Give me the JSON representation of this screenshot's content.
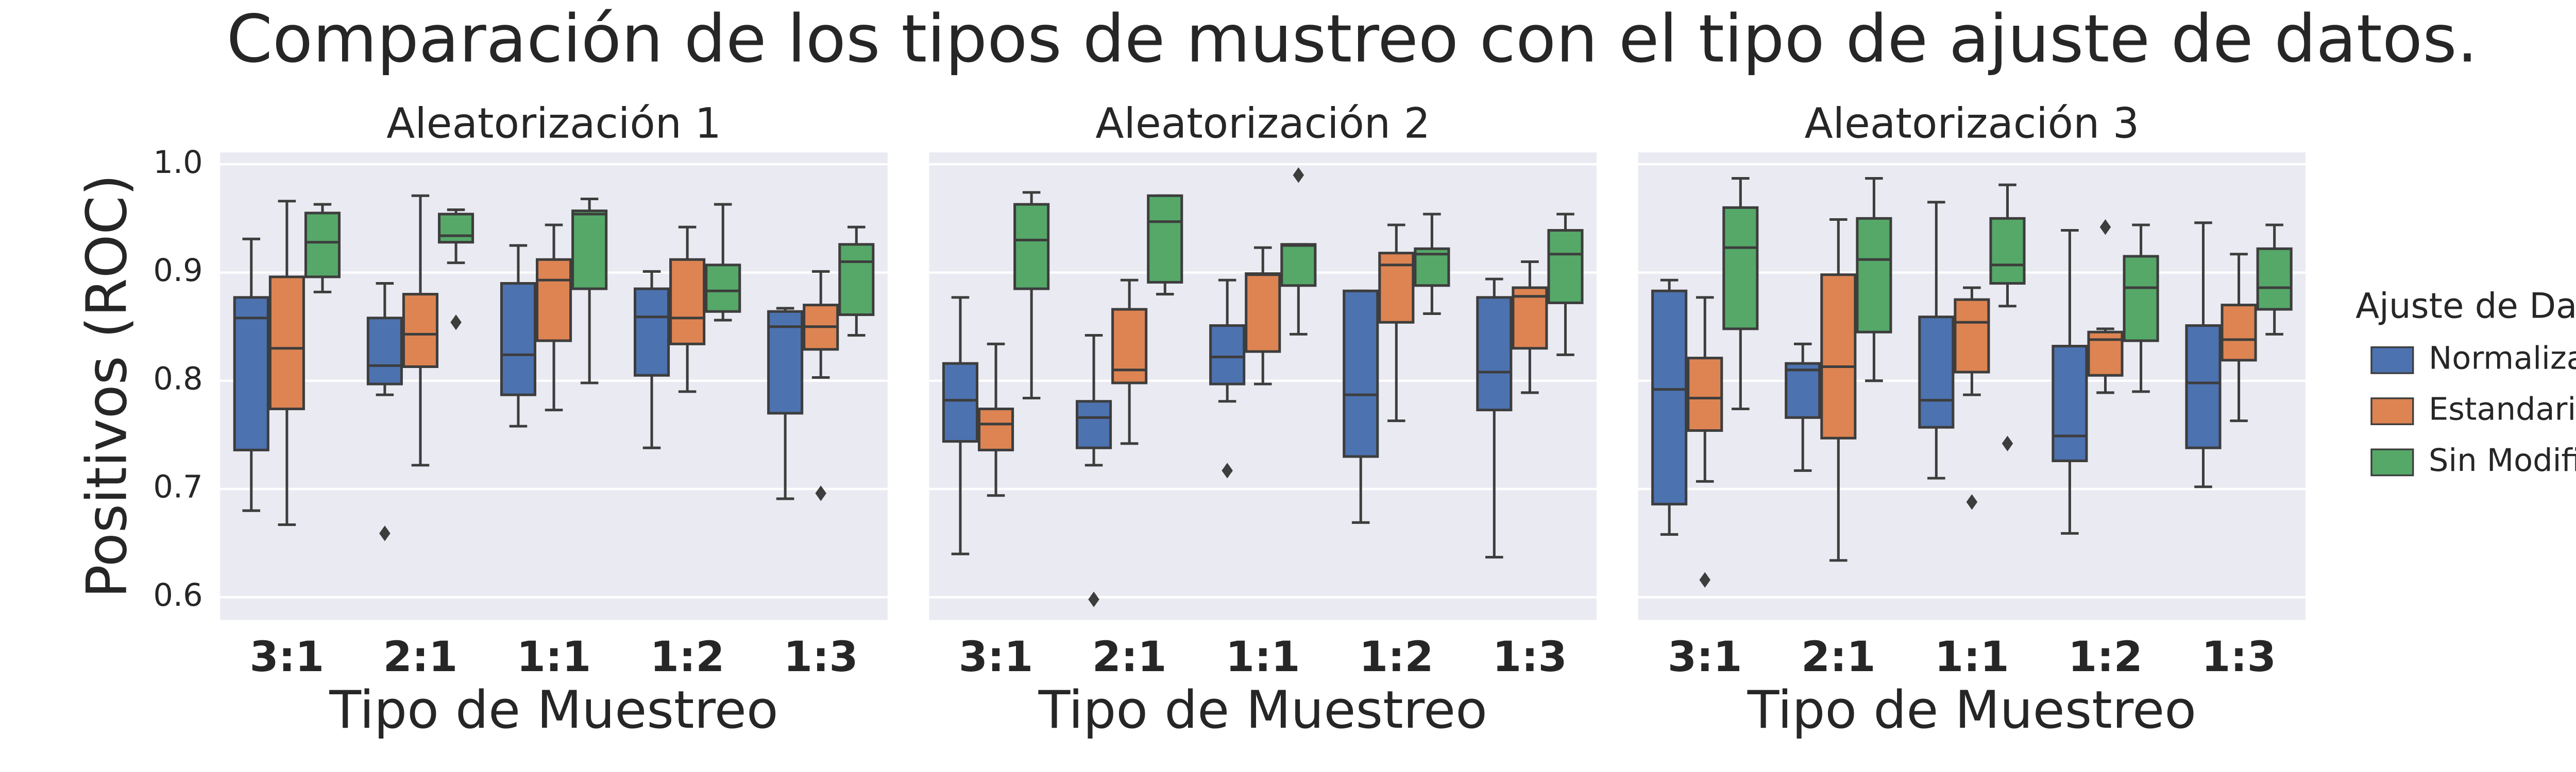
{
  "title": "Comparación de los tipos de mustreo con el tipo de ajuste de datos.",
  "legend_title": "Ajuste de Datos",
  "chart_data": [
    {
      "type": "box",
      "title": "Aleatorización 1",
      "xlabel": "Tipo de Muestreo",
      "ylabel": "Positivos (ROC)",
      "categories": [
        "3:1",
        "2:1",
        "1:1",
        "1:2",
        "1:3"
      ],
      "ylim": [
        0.579,
        1.011
      ],
      "yticks": [
        0.6,
        0.7,
        0.8,
        0.9,
        {
          "value": 1,
          "label": "1.0"
        }
      ],
      "grid": true,
      "series": [
        {
          "name": "Normalizados",
          "color": "#4c72b0",
          "boxes": [
            {
              "low": 0.68,
              "q1": 0.736,
              "median": 0.858,
              "q3": 0.877,
              "high": 0.931
            },
            {
              "low": 0.787,
              "q1": 0.797,
              "median": 0.814,
              "q3": 0.858,
              "high": 0.89,
              "outliers": [
                0.659
              ]
            },
            {
              "low": 0.758,
              "q1": 0.787,
              "median": 0.824,
              "q3": 0.89,
              "high": 0.925
            },
            {
              "low": 0.738,
              "q1": 0.805,
              "median": 0.859,
              "q3": 0.885,
              "high": 0.901
            },
            {
              "low": 0.691,
              "q1": 0.77,
              "median": 0.85,
              "q3": 0.864,
              "high": 0.867
            }
          ]
        },
        {
          "name": "Estandarizados",
          "color": "#dd8452",
          "boxes": [
            {
              "low": 0.667,
              "q1": 0.774,
              "median": 0.83,
              "q3": 0.896,
              "high": 0.966
            },
            {
              "low": 0.722,
              "q1": 0.813,
              "median": 0.843,
              "q3": 0.88,
              "high": 0.971
            },
            {
              "low": 0.773,
              "q1": 0.837,
              "median": 0.893,
              "q3": 0.912,
              "high": 0.944
            },
            {
              "low": 0.79,
              "q1": 0.834,
              "median": 0.858,
              "q3": 0.912,
              "high": 0.942
            },
            {
              "low": 0.803,
              "q1": 0.829,
              "median": 0.85,
              "q3": 0.87,
              "high": 0.901,
              "outliers": [
                0.696
              ]
            }
          ]
        },
        {
          "name": "Sin Modificación",
          "color": "#55a868",
          "boxes": [
            {
              "low": 0.882,
              "q1": 0.896,
              "median": 0.928,
              "q3": 0.955,
              "high": 0.963
            },
            {
              "low": 0.909,
              "q1": 0.928,
              "median": 0.934,
              "q3": 0.954,
              "high": 0.958,
              "outliers": [
                0.854
              ]
            },
            {
              "low": 0.798,
              "q1": 0.885,
              "median": 0.954,
              "q3": 0.957,
              "high": 0.968
            },
            {
              "low": 0.856,
              "q1": 0.864,
              "median": 0.883,
              "q3": 0.907,
              "high": 0.963
            },
            {
              "low": 0.842,
              "q1": 0.861,
              "median": 0.91,
              "q3": 0.926,
              "high": 0.942
            }
          ]
        }
      ]
    },
    {
      "type": "box",
      "title": "Aleatorización 2",
      "xlabel": "Tipo de Muestreo",
      "categories": [
        "3:1",
        "2:1",
        "1:1",
        "1:2",
        "1:3"
      ],
      "series": [
        {
          "name": "Normalizados",
          "color": "#4c72b0",
          "boxes": [
            {
              "low": 0.64,
              "q1": 0.744,
              "median": 0.782,
              "q3": 0.816,
              "high": 0.877
            },
            {
              "low": 0.722,
              "q1": 0.738,
              "median": 0.766,
              "q3": 0.781,
              "high": 0.842,
              "outliers": [
                0.598
              ]
            },
            {
              "low": 0.781,
              "q1": 0.797,
              "median": 0.822,
              "q3": 0.851,
              "high": 0.893,
              "outliers": [
                0.717
              ]
            },
            {
              "low": 0.669,
              "q1": 0.73,
              "median": 0.787,
              "q3": 0.883,
              "high": 0.883
            },
            {
              "low": 0.637,
              "q1": 0.773,
              "median": 0.808,
              "q3": 0.877,
              "high": 0.894
            }
          ]
        },
        {
          "name": "Estandarizados",
          "color": "#dd8452",
          "boxes": [
            {
              "low": 0.694,
              "q1": 0.736,
              "median": 0.76,
              "q3": 0.774,
              "high": 0.834
            },
            {
              "low": 0.742,
              "q1": 0.798,
              "median": 0.81,
              "q3": 0.866,
              "high": 0.893
            },
            {
              "low": 0.797,
              "q1": 0.827,
              "median": 0.898,
              "q3": 0.899,
              "high": 0.923
            },
            {
              "low": 0.763,
              "q1": 0.854,
              "median": 0.907,
              "q3": 0.918,
              "high": 0.944
            },
            {
              "low": 0.789,
              "q1": 0.83,
              "median": 0.878,
              "q3": 0.886,
              "high": 0.91
            }
          ]
        },
        {
          "name": "Sin Modificación",
          "color": "#55a868",
          "boxes": [
            {
              "low": 0.784,
              "q1": 0.885,
              "median": 0.93,
              "q3": 0.963,
              "high": 0.974
            },
            {
              "low": 0.88,
              "q1": 0.891,
              "median": 0.947,
              "q3": 0.971,
              "high": 0.971
            },
            {
              "low": 0.843,
              "q1": 0.888,
              "median": 0.925,
              "q3": 0.926,
              "high": 0.926,
              "outliers": [
                0.99
              ]
            },
            {
              "low": 0.862,
              "q1": 0.888,
              "median": 0.917,
              "q3": 0.922,
              "high": 0.954
            },
            {
              "low": 0.824,
              "q1": 0.872,
              "median": 0.917,
              "q3": 0.939,
              "high": 0.954
            }
          ]
        }
      ]
    },
    {
      "type": "box",
      "title": "Aleatorización 3",
      "xlabel": "Tipo de Muestreo",
      "categories": [
        "3:1",
        "2:1",
        "1:1",
        "1:2",
        "1:3"
      ],
      "series": [
        {
          "name": "Normalizados",
          "color": "#4c72b0",
          "boxes": [
            {
              "low": 0.658,
              "q1": 0.686,
              "median": 0.792,
              "q3": 0.883,
              "high": 0.893
            },
            {
              "low": 0.717,
              "q1": 0.766,
              "median": 0.81,
              "q3": 0.816,
              "high": 0.834
            },
            {
              "low": 0.71,
              "q1": 0.757,
              "median": 0.782,
              "q3": 0.859,
              "high": 0.965
            },
            {
              "low": 0.659,
              "q1": 0.726,
              "median": 0.749,
              "q3": 0.832,
              "high": 0.939
            },
            {
              "low": 0.702,
              "q1": 0.738,
              "median": 0.798,
              "q3": 0.851,
              "high": 0.946
            }
          ]
        },
        {
          "name": "Estandarizados",
          "color": "#dd8452",
          "boxes": [
            {
              "low": 0.707,
              "q1": 0.754,
              "median": 0.784,
              "q3": 0.821,
              "high": 0.877,
              "outliers": [
                0.616
              ]
            },
            {
              "low": 0.634,
              "q1": 0.747,
              "median": 0.813,
              "q3": 0.898,
              "high": 0.949
            },
            {
              "low": 0.787,
              "q1": 0.808,
              "median": 0.854,
              "q3": 0.875,
              "high": 0.886,
              "outliers": [
                0.688
              ]
            },
            {
              "low": 0.789,
              "q1": 0.805,
              "median": 0.838,
              "q3": 0.845,
              "high": 0.848,
              "outliers": [
                0.942
              ]
            },
            {
              "low": 0.763,
              "q1": 0.819,
              "median": 0.838,
              "q3": 0.87,
              "high": 0.917
            }
          ]
        },
        {
          "name": "Sin Modificación",
          "color": "#55a868",
          "boxes": [
            {
              "low": 0.774,
              "q1": 0.848,
              "median": 0.923,
              "q3": 0.96,
              "high": 0.987
            },
            {
              "low": 0.8,
              "q1": 0.845,
              "median": 0.912,
              "q3": 0.95,
              "high": 0.987
            },
            {
              "low": 0.869,
              "q1": 0.89,
              "median": 0.907,
              "q3": 0.95,
              "high": 0.981,
              "outliers": [
                0.742
              ]
            },
            {
              "low": 0.79,
              "q1": 0.837,
              "median": 0.886,
              "q3": 0.915,
              "high": 0.944
            },
            {
              "low": 0.843,
              "q1": 0.866,
              "median": 0.886,
              "q3": 0.922,
              "high": 0.944
            }
          ]
        }
      ]
    }
  ]
}
